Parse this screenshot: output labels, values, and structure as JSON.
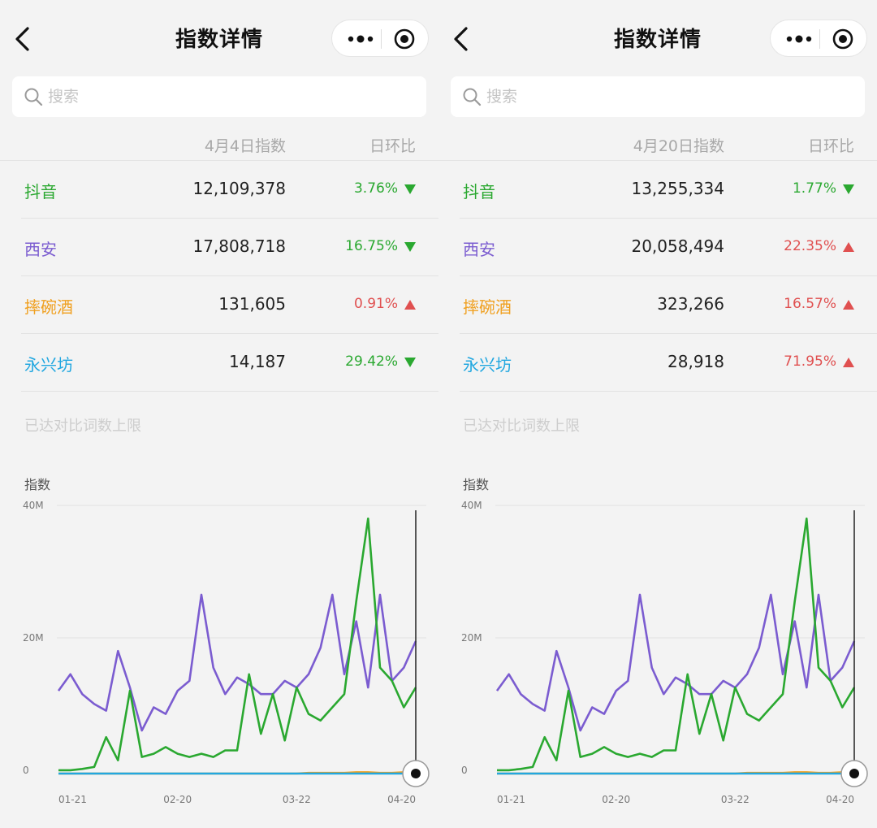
{
  "colors": {
    "douyin": "#2aa830",
    "xian": "#7b5cd0",
    "shuaiwanjiu": "#f0a020",
    "yongxingfang": "#22a7e0",
    "down": "#2aa830",
    "up": "#e05050"
  },
  "panels": [
    {
      "title": "指数详情",
      "search_placeholder": "搜索",
      "header_index": "4月4日指数",
      "header_ratio": "日环比",
      "rows": [
        {
          "keyword": "抖音",
          "value": "12,109,378",
          "pct": "3.76%",
          "dir": "down",
          "color": "douyin"
        },
        {
          "keyword": "西安",
          "value": "17,808,718",
          "pct": "16.75%",
          "dir": "down",
          "color": "xian"
        },
        {
          "keyword": "摔碗酒",
          "value": "131,605",
          "pct": "0.91%",
          "dir": "up",
          "color": "shuaiwanjiu"
        },
        {
          "keyword": "永兴坊",
          "value": "14,187",
          "pct": "29.42%",
          "dir": "down",
          "color": "yongxingfang"
        }
      ],
      "limit_note": "已达对比词数上限",
      "chart_ylabel": "指数"
    },
    {
      "title": "指数详情",
      "search_placeholder": "搜索",
      "header_index": "4月20日指数",
      "header_ratio": "日环比",
      "rows": [
        {
          "keyword": "抖音",
          "value": "13,255,334",
          "pct": "1.77%",
          "dir": "down",
          "color": "douyin"
        },
        {
          "keyword": "西安",
          "value": "20,058,494",
          "pct": "22.35%",
          "dir": "up",
          "color": "xian"
        },
        {
          "keyword": "摔碗酒",
          "value": "323,266",
          "pct": "16.57%",
          "dir": "up",
          "color": "shuaiwanjiu"
        },
        {
          "keyword": "永兴坊",
          "value": "28,918",
          "pct": "71.95%",
          "dir": "up",
          "color": "yongxingfang"
        }
      ],
      "limit_note": "已达对比词数上限",
      "chart_ylabel": "指数"
    }
  ],
  "chart_data": [
    {
      "type": "line",
      "ylabel": "指数",
      "ylim": [
        0,
        40000000
      ],
      "y_ticks": [
        "0",
        "20M",
        "40M"
      ],
      "y_tick_values": [
        0,
        20000000,
        40000000
      ],
      "x_ticks": [
        "01-21",
        "02-20",
        "03-22",
        "04-20"
      ],
      "x": [
        "01-21",
        "01-24",
        "01-27",
        "01-30",
        "02-02",
        "02-05",
        "02-08",
        "02-11",
        "02-14",
        "02-17",
        "02-20",
        "02-23",
        "02-26",
        "03-01",
        "03-04",
        "03-07",
        "03-10",
        "03-13",
        "03-16",
        "03-19",
        "03-22",
        "03-25",
        "03-28",
        "03-31",
        "04-03",
        "04-06",
        "04-09",
        "04-12",
        "04-15",
        "04-18",
        "04-20"
      ],
      "cursor_date": "04-04",
      "series": [
        {
          "name": "西安",
          "color": "xian",
          "values": [
            12.5,
            15,
            12,
            10.5,
            9.5,
            18.5,
            13,
            6.5,
            10,
            9,
            12.5,
            14,
            27,
            16,
            12,
            14.5,
            13.5,
            12,
            12,
            14,
            13,
            15,
            19,
            27,
            15,
            23,
            13,
            27,
            14,
            16,
            20
          ]
        },
        {
          "name": "抖音",
          "color": "douyin",
          "values": [
            0.5,
            0.5,
            0.7,
            1,
            5.5,
            2,
            12.5,
            2.5,
            3,
            4,
            3,
            2.5,
            3,
            2.5,
            3.5,
            3.5,
            15,
            6,
            12,
            5,
            13,
            9,
            8,
            10,
            12,
            26,
            38.5,
            16,
            14,
            10,
            13
          ]
        },
        {
          "name": "摔碗酒",
          "color": "shuaiwanjiu",
          "values": [
            0,
            0,
            0,
            0,
            0,
            0,
            0,
            0,
            0,
            0,
            0,
            0,
            0,
            0,
            0,
            0,
            0,
            0,
            0,
            0,
            0,
            0.1,
            0.1,
            0.1,
            0.1,
            0.2,
            0.2,
            0.1,
            0.1,
            0.2,
            0.3
          ]
        },
        {
          "name": "永兴坊",
          "color": "yongxingfang",
          "values": [
            0,
            0,
            0,
            0,
            0,
            0,
            0,
            0,
            0,
            0,
            0,
            0,
            0,
            0,
            0,
            0,
            0,
            0,
            0,
            0,
            0,
            0,
            0,
            0,
            0,
            0,
            0,
            0,
            0,
            0,
            0
          ]
        }
      ]
    },
    {
      "type": "line",
      "ylabel": "指数",
      "ylim": [
        0,
        40000000
      ],
      "y_ticks": [
        "0",
        "20M",
        "40M"
      ],
      "y_tick_values": [
        0,
        20000000,
        40000000
      ],
      "x_ticks": [
        "01-21",
        "02-20",
        "03-22",
        "04-20"
      ],
      "x": [
        "01-21",
        "01-24",
        "01-27",
        "01-30",
        "02-02",
        "02-05",
        "02-08",
        "02-11",
        "02-14",
        "02-17",
        "02-20",
        "02-23",
        "02-26",
        "03-01",
        "03-04",
        "03-07",
        "03-10",
        "03-13",
        "03-16",
        "03-19",
        "03-22",
        "03-25",
        "03-28",
        "03-31",
        "04-03",
        "04-06",
        "04-09",
        "04-12",
        "04-15",
        "04-18",
        "04-20"
      ],
      "cursor_date": "04-20",
      "series": [
        {
          "name": "西安",
          "color": "xian",
          "values": [
            12.5,
            15,
            12,
            10.5,
            9.5,
            18.5,
            13,
            6.5,
            10,
            9,
            12.5,
            14,
            27,
            16,
            12,
            14.5,
            13.5,
            12,
            12,
            14,
            13,
            15,
            19,
            27,
            15,
            23,
            13,
            27,
            14,
            16,
            20
          ]
        },
        {
          "name": "抖音",
          "color": "douyin",
          "values": [
            0.5,
            0.5,
            0.7,
            1,
            5.5,
            2,
            12.5,
            2.5,
            3,
            4,
            3,
            2.5,
            3,
            2.5,
            3.5,
            3.5,
            15,
            6,
            12,
            5,
            13,
            9,
            8,
            10,
            12,
            26,
            38.5,
            16,
            14,
            10,
            13
          ]
        },
        {
          "name": "摔碗酒",
          "color": "shuaiwanjiu",
          "values": [
            0,
            0,
            0,
            0,
            0,
            0,
            0,
            0,
            0,
            0,
            0,
            0,
            0,
            0,
            0,
            0,
            0,
            0,
            0,
            0,
            0,
            0.1,
            0.1,
            0.1,
            0.1,
            0.2,
            0.2,
            0.1,
            0.1,
            0.2,
            0.3
          ]
        },
        {
          "name": "永兴坊",
          "color": "yongxingfang",
          "values": [
            0,
            0,
            0,
            0,
            0,
            0,
            0,
            0,
            0,
            0,
            0,
            0,
            0,
            0,
            0,
            0,
            0,
            0,
            0,
            0,
            0,
            0,
            0,
            0,
            0,
            0,
            0,
            0,
            0,
            0,
            0
          ]
        }
      ]
    }
  ]
}
